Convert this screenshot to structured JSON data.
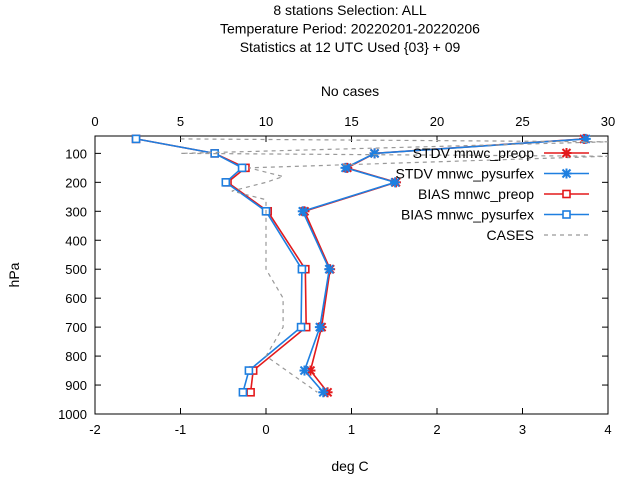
{
  "chart_data": {
    "type": "line",
    "title_lines": [
      "8 stations Selection: ALL",
      "Temperature  Period: 20220201-20220206",
      "Statistics at 12 UTC  Used {03} + 09"
    ],
    "x2label": "No cases",
    "xlabel": "deg C",
    "ylabel": "hPa",
    "xlim": [
      -2,
      4
    ],
    "x2lim": [
      0,
      30
    ],
    "ylim": [
      1000,
      40
    ],
    "y_reversed": true,
    "xticks": [
      "-2",
      "-1",
      "0",
      "1",
      "2",
      "3",
      "4"
    ],
    "x2ticks": [
      "0",
      "5",
      "10",
      "15",
      "20",
      "25",
      "30"
    ],
    "yticks": [
      "100",
      "200",
      "300",
      "400",
      "500",
      "600",
      "700",
      "800",
      "900",
      "1000"
    ],
    "grid": false,
    "legend_position": "top-right",
    "series": [
      {
        "name": "STDV mnwc_preop",
        "color": "#e31a1c",
        "marker": "star",
        "dashed": false,
        "axis": "x",
        "x": [
          3.72,
          1.27,
          0.95,
          1.52,
          0.45,
          0.75,
          0.65,
          0.52,
          0.72
        ],
        "y": [
          50,
          100,
          150,
          200,
          300,
          500,
          700,
          850,
          925
        ]
      },
      {
        "name": "STDV mnwc_pysurfex",
        "color": "#1e7fe0",
        "marker": "star",
        "dashed": false,
        "axis": "x",
        "x": [
          3.74,
          1.27,
          0.93,
          1.51,
          0.43,
          0.74,
          0.63,
          0.45,
          0.67
        ],
        "y": [
          50,
          100,
          150,
          200,
          300,
          500,
          700,
          850,
          925
        ]
      },
      {
        "name": "BIAS mnwc_preop",
        "color": "#e31a1c",
        "marker": "square",
        "dashed": false,
        "axis": "x",
        "x": [
          -1.52,
          -0.6,
          -0.24,
          -0.45,
          0.02,
          0.46,
          0.47,
          -0.15,
          -0.18
        ],
        "y": [
          50,
          100,
          150,
          200,
          300,
          500,
          700,
          850,
          925
        ]
      },
      {
        "name": "BIAS mnwc_pysurfex",
        "color": "#1e7fe0",
        "marker": "square",
        "dashed": false,
        "axis": "x",
        "x": [
          -1.52,
          -0.6,
          -0.28,
          -0.47,
          0.0,
          0.42,
          0.41,
          -0.2,
          -0.27
        ],
        "y": [
          50,
          100,
          150,
          200,
          300,
          500,
          700,
          850,
          925
        ]
      },
      {
        "name": "CASES",
        "color": "#999999",
        "marker": "none",
        "dashed": true,
        "axis": "x2",
        "x": [
          5,
          30,
          5,
          30,
          9,
          11,
          10,
          8,
          10,
          10,
          10,
          10,
          11,
          11,
          10,
          13
        ],
        "y": [
          50,
          60,
          100,
          110,
          150,
          180,
          200,
          230,
          260,
          300,
          400,
          500,
          600,
          700,
          800,
          925
        ]
      }
    ]
  }
}
